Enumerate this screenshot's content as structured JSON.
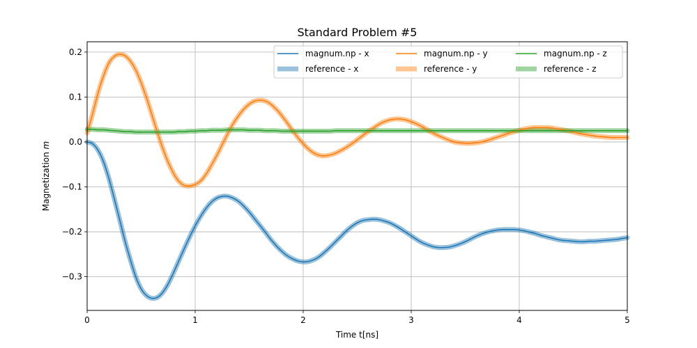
{
  "chart_data": {
    "type": "line",
    "title": "Standard Problem #5",
    "xlabel": "Time t[ns]",
    "ylabel_text": "Magnetization ",
    "ylabel_symbol": "m",
    "xlim": [
      0,
      5
    ],
    "ylim": [
      -0.375,
      0.223
    ],
    "xticks": [
      0,
      1,
      2,
      3,
      4,
      5
    ],
    "yticks": [
      -0.3,
      -0.2,
      -0.1,
      0.0,
      0.1,
      0.2
    ],
    "ytick_labels": [
      "−0.3",
      "−0.2",
      "−0.1",
      "0.0",
      "0.1",
      "0.2"
    ],
    "xtick_labels": [
      "0",
      "1",
      "2",
      "3",
      "4",
      "5"
    ],
    "grid": true,
    "legend_position": "top-right",
    "legend_columns": 3,
    "x": [
      0.0,
      0.05,
      0.1,
      0.15,
      0.2,
      0.25,
      0.3,
      0.35,
      0.4,
      0.45,
      0.5,
      0.55,
      0.6,
      0.65,
      0.7,
      0.75,
      0.8,
      0.85,
      0.9,
      0.95,
      1.0,
      1.05,
      1.1,
      1.15,
      1.2,
      1.25,
      1.3,
      1.35,
      1.4,
      1.45,
      1.5,
      1.55,
      1.6,
      1.65,
      1.7,
      1.75,
      1.8,
      1.85,
      1.9,
      1.95,
      2.0,
      2.05,
      2.1,
      2.15,
      2.2,
      2.25,
      2.3,
      2.35,
      2.4,
      2.45,
      2.5,
      2.55,
      2.6,
      2.65,
      2.7,
      2.75,
      2.8,
      2.85,
      2.9,
      2.95,
      3.0,
      3.05,
      3.1,
      3.15,
      3.2,
      3.25,
      3.3,
      3.35,
      3.4,
      3.45,
      3.5,
      3.55,
      3.6,
      3.65,
      3.7,
      3.75,
      3.8,
      3.85,
      3.9,
      3.95,
      4.0,
      4.05,
      4.1,
      4.15,
      4.2,
      4.25,
      4.3,
      4.35,
      4.4,
      4.45,
      4.5,
      4.55,
      4.6,
      4.65,
      4.7,
      4.75,
      4.8,
      4.85,
      4.9,
      4.95,
      5.0
    ],
    "series": [
      {
        "name": "magnum.np - x",
        "color": "#1f77b4",
        "style": "thin",
        "values": [
          0.0,
          -0.004,
          -0.018,
          -0.043,
          -0.08,
          -0.125,
          -0.172,
          -0.22,
          -0.262,
          -0.3,
          -0.327,
          -0.342,
          -0.348,
          -0.346,
          -0.335,
          -0.316,
          -0.291,
          -0.264,
          -0.237,
          -0.211,
          -0.187,
          -0.166,
          -0.148,
          -0.134,
          -0.125,
          -0.121,
          -0.121,
          -0.125,
          -0.132,
          -0.143,
          -0.156,
          -0.171,
          -0.186,
          -0.201,
          -0.217,
          -0.231,
          -0.243,
          -0.253,
          -0.26,
          -0.265,
          -0.267,
          -0.266,
          -0.262,
          -0.255,
          -0.245,
          -0.234,
          -0.222,
          -0.21,
          -0.198,
          -0.188,
          -0.18,
          -0.175,
          -0.173,
          -0.172,
          -0.173,
          -0.176,
          -0.18,
          -0.186,
          -0.193,
          -0.201,
          -0.209,
          -0.217,
          -0.224,
          -0.229,
          -0.233,
          -0.235,
          -0.235,
          -0.234,
          -0.231,
          -0.227,
          -0.222,
          -0.216,
          -0.21,
          -0.205,
          -0.201,
          -0.198,
          -0.196,
          -0.195,
          -0.195,
          -0.195,
          -0.196,
          -0.198,
          -0.201,
          -0.204,
          -0.208,
          -0.211,
          -0.214,
          -0.217,
          -0.219,
          -0.22,
          -0.221,
          -0.222,
          -0.222,
          -0.221,
          -0.221,
          -0.22,
          -0.219,
          -0.218,
          -0.217,
          -0.215,
          -0.213
        ]
      },
      {
        "name": "magnum.np - y",
        "color": "#ff7f0e",
        "style": "thin",
        "values": [
          0.02,
          0.062,
          0.108,
          0.146,
          0.175,
          0.19,
          0.195,
          0.192,
          0.18,
          0.16,
          0.132,
          0.098,
          0.06,
          0.022,
          -0.014,
          -0.045,
          -0.07,
          -0.088,
          -0.097,
          -0.098,
          -0.095,
          -0.087,
          -0.072,
          -0.052,
          -0.03,
          -0.006,
          0.018,
          0.04,
          0.058,
          0.073,
          0.084,
          0.091,
          0.093,
          0.091,
          0.084,
          0.073,
          0.059,
          0.043,
          0.026,
          0.01,
          -0.004,
          -0.016,
          -0.025,
          -0.03,
          -0.031,
          -0.029,
          -0.025,
          -0.019,
          -0.012,
          -0.004,
          0.005,
          0.014,
          0.023,
          0.031,
          0.039,
          0.045,
          0.049,
          0.051,
          0.051,
          0.049,
          0.045,
          0.04,
          0.034,
          0.027,
          0.02,
          0.014,
          0.009,
          0.004,
          0.0,
          -0.002,
          -0.003,
          -0.003,
          -0.002,
          0.0,
          0.003,
          0.007,
          0.011,
          0.015,
          0.019,
          0.023,
          0.026,
          0.029,
          0.031,
          0.032,
          0.032,
          0.032,
          0.031,
          0.029,
          0.027,
          0.025,
          0.022,
          0.019,
          0.017,
          0.015,
          0.013,
          0.012,
          0.011,
          0.01,
          0.01,
          0.01,
          0.01
        ]
      },
      {
        "name": "magnum.np - z",
        "color": "#2ca02c",
        "style": "thin",
        "values": [
          0.028,
          0.028,
          0.027,
          0.027,
          0.026,
          0.025,
          0.024,
          0.023,
          0.023,
          0.022,
          0.022,
          0.022,
          0.022,
          0.022,
          0.022,
          0.022,
          0.022,
          0.023,
          0.023,
          0.024,
          0.024,
          0.025,
          0.025,
          0.026,
          0.026,
          0.026,
          0.027,
          0.027,
          0.027,
          0.027,
          0.026,
          0.026,
          0.026,
          0.025,
          0.025,
          0.025,
          0.024,
          0.024,
          0.024,
          0.024,
          0.024,
          0.024,
          0.024,
          0.024,
          0.024,
          0.024,
          0.025,
          0.025,
          0.025,
          0.025,
          0.025,
          0.025,
          0.025,
          0.025,
          0.025,
          0.025,
          0.025,
          0.025,
          0.025,
          0.025,
          0.025,
          0.025,
          0.025,
          0.025,
          0.025,
          0.025,
          0.025,
          0.025,
          0.025,
          0.025,
          0.025,
          0.025,
          0.025,
          0.025,
          0.025,
          0.025,
          0.025,
          0.025,
          0.025,
          0.025,
          0.025,
          0.025,
          0.025,
          0.025,
          0.025,
          0.025,
          0.025,
          0.025,
          0.025,
          0.025,
          0.025,
          0.025,
          0.025,
          0.025,
          0.025,
          0.025,
          0.025,
          0.025,
          0.025,
          0.025,
          0.025
        ]
      },
      {
        "name": "reference - x",
        "color": "#1f77b4",
        "style": "thick",
        "values": [
          0.0,
          -0.004,
          -0.018,
          -0.043,
          -0.08,
          -0.125,
          -0.172,
          -0.22,
          -0.262,
          -0.3,
          -0.327,
          -0.342,
          -0.348,
          -0.346,
          -0.335,
          -0.316,
          -0.291,
          -0.264,
          -0.237,
          -0.211,
          -0.187,
          -0.166,
          -0.148,
          -0.134,
          -0.125,
          -0.121,
          -0.121,
          -0.125,
          -0.132,
          -0.143,
          -0.156,
          -0.171,
          -0.186,
          -0.201,
          -0.217,
          -0.231,
          -0.243,
          -0.253,
          -0.26,
          -0.265,
          -0.267,
          -0.266,
          -0.262,
          -0.255,
          -0.245,
          -0.234,
          -0.222,
          -0.21,
          -0.198,
          -0.188,
          -0.18,
          -0.175,
          -0.173,
          -0.172,
          -0.173,
          -0.176,
          -0.18,
          -0.186,
          -0.193,
          -0.201,
          -0.209,
          -0.217,
          -0.224,
          -0.229,
          -0.233,
          -0.235,
          -0.235,
          -0.234,
          -0.231,
          -0.227,
          -0.222,
          -0.216,
          -0.21,
          -0.205,
          -0.201,
          -0.198,
          -0.196,
          -0.195,
          -0.195,
          -0.195,
          -0.196,
          -0.198,
          -0.201,
          -0.204,
          -0.208,
          -0.211,
          -0.214,
          -0.217,
          -0.219,
          -0.22,
          -0.221,
          -0.222,
          -0.222,
          -0.221,
          -0.221,
          -0.22,
          -0.219,
          -0.218,
          -0.217,
          -0.215,
          -0.213
        ]
      },
      {
        "name": "reference - y",
        "color": "#ff7f0e",
        "style": "thick",
        "values": [
          0.02,
          0.062,
          0.108,
          0.146,
          0.175,
          0.19,
          0.195,
          0.192,
          0.18,
          0.16,
          0.132,
          0.098,
          0.06,
          0.022,
          -0.014,
          -0.045,
          -0.07,
          -0.088,
          -0.097,
          -0.098,
          -0.095,
          -0.087,
          -0.072,
          -0.052,
          -0.03,
          -0.006,
          0.018,
          0.04,
          0.058,
          0.073,
          0.084,
          0.091,
          0.093,
          0.091,
          0.084,
          0.073,
          0.059,
          0.043,
          0.026,
          0.01,
          -0.004,
          -0.016,
          -0.025,
          -0.03,
          -0.031,
          -0.029,
          -0.025,
          -0.019,
          -0.012,
          -0.004,
          0.005,
          0.014,
          0.023,
          0.031,
          0.039,
          0.045,
          0.049,
          0.051,
          0.051,
          0.049,
          0.045,
          0.04,
          0.034,
          0.027,
          0.02,
          0.014,
          0.009,
          0.004,
          0.0,
          -0.002,
          -0.003,
          -0.003,
          -0.002,
          0.0,
          0.003,
          0.007,
          0.011,
          0.015,
          0.019,
          0.023,
          0.026,
          0.029,
          0.031,
          0.032,
          0.032,
          0.032,
          0.031,
          0.029,
          0.027,
          0.025,
          0.022,
          0.019,
          0.017,
          0.015,
          0.013,
          0.012,
          0.011,
          0.01,
          0.01,
          0.01,
          0.01
        ]
      },
      {
        "name": "reference - z",
        "color": "#2ca02c",
        "style": "thick",
        "values": [
          0.028,
          0.028,
          0.027,
          0.027,
          0.026,
          0.025,
          0.024,
          0.023,
          0.023,
          0.022,
          0.022,
          0.022,
          0.022,
          0.022,
          0.022,
          0.022,
          0.022,
          0.023,
          0.023,
          0.024,
          0.024,
          0.025,
          0.025,
          0.026,
          0.026,
          0.026,
          0.027,
          0.027,
          0.027,
          0.027,
          0.026,
          0.026,
          0.026,
          0.025,
          0.025,
          0.025,
          0.024,
          0.024,
          0.024,
          0.024,
          0.024,
          0.024,
          0.024,
          0.024,
          0.024,
          0.024,
          0.025,
          0.025,
          0.025,
          0.025,
          0.025,
          0.025,
          0.025,
          0.025,
          0.025,
          0.025,
          0.025,
          0.025,
          0.025,
          0.025,
          0.025,
          0.025,
          0.025,
          0.025,
          0.025,
          0.025,
          0.025,
          0.025,
          0.025,
          0.025,
          0.025,
          0.025,
          0.025,
          0.025,
          0.025,
          0.025,
          0.025,
          0.025,
          0.025,
          0.025,
          0.025,
          0.025,
          0.025,
          0.025,
          0.025,
          0.025,
          0.025,
          0.025,
          0.025,
          0.025,
          0.025,
          0.025,
          0.025,
          0.025,
          0.025,
          0.025,
          0.025,
          0.025,
          0.025,
          0.025,
          0.025
        ]
      }
    ],
    "legend": [
      {
        "label": "magnum.np - x",
        "color": "#1f77b4",
        "style": "thin"
      },
      {
        "label": "magnum.np - y",
        "color": "#ff7f0e",
        "style": "thin"
      },
      {
        "label": "magnum.np - z",
        "color": "#2ca02c",
        "style": "thin"
      },
      {
        "label": "reference - x",
        "color": "#1f77b4",
        "style": "thick"
      },
      {
        "label": "reference - y",
        "color": "#ff7f0e",
        "style": "thick"
      },
      {
        "label": "reference - z",
        "color": "#2ca02c",
        "style": "thick"
      }
    ]
  }
}
